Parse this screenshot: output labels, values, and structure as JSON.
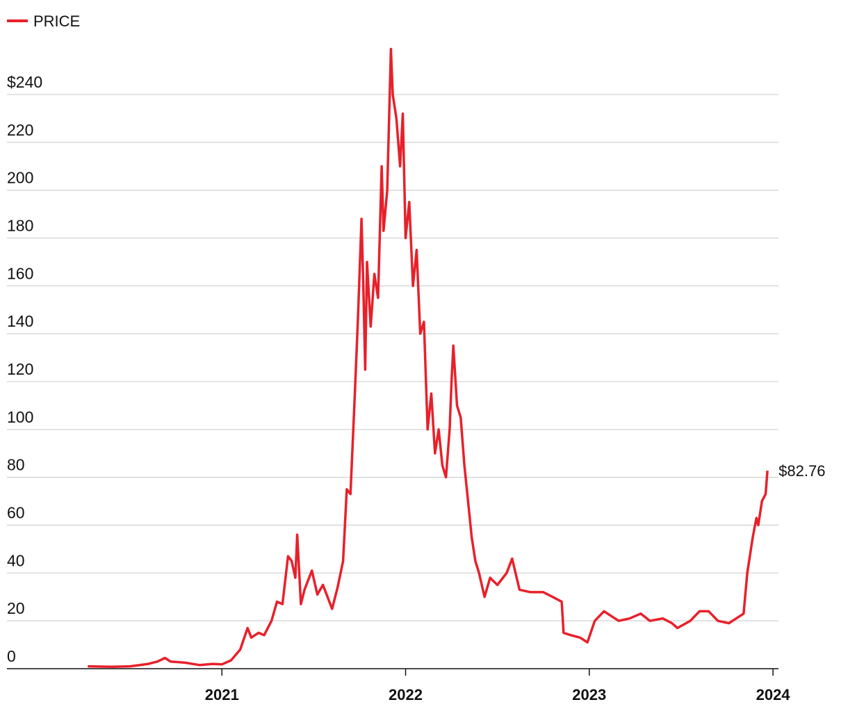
{
  "chart_data": {
    "type": "line",
    "legend": "PRICE",
    "annotation": "$82.76",
    "x": [
      2020.27,
      2020.4,
      2020.5,
      2020.6,
      2020.65,
      2020.69,
      2020.72,
      2020.8,
      2020.88,
      2020.95,
      2021.0,
      2021.05,
      2021.1,
      2021.14,
      2021.16,
      2021.2,
      2021.23,
      2021.27,
      2021.3,
      2021.33,
      2021.36,
      2021.38,
      2021.4,
      2021.41,
      2021.43,
      2021.45,
      2021.49,
      2021.52,
      2021.55,
      2021.6,
      2021.63,
      2021.66,
      2021.68,
      2021.7,
      2021.72,
      2021.74,
      2021.76,
      2021.77,
      2021.78,
      2021.79,
      2021.81,
      2021.83,
      2021.85,
      2021.87,
      2021.88,
      2021.9,
      2021.92,
      2021.93,
      2021.95,
      2021.97,
      2021.985,
      2022.0,
      2022.02,
      2022.04,
      2022.06,
      2022.08,
      2022.1,
      2022.12,
      2022.14,
      2022.16,
      2022.18,
      2022.2,
      2022.22,
      2022.24,
      2022.25,
      2022.26,
      2022.28,
      2022.3,
      2022.32,
      2022.34,
      2022.36,
      2022.38,
      2022.4,
      2022.43,
      2022.46,
      2022.5,
      2022.55,
      2022.58,
      2022.62,
      2022.68,
      2022.75,
      2022.8,
      2022.85,
      2022.86,
      2022.9,
      2022.95,
      2022.99,
      2023.03,
      2023.08,
      2023.12,
      2023.16,
      2023.22,
      2023.28,
      2023.33,
      2023.4,
      2023.45,
      2023.48,
      2023.55,
      2023.6,
      2023.65,
      2023.7,
      2023.76,
      2023.8,
      2023.84,
      2023.86,
      2023.89,
      2023.91,
      2023.92,
      2023.94,
      2023.96,
      2023.97
    ],
    "series": [
      {
        "name": "PRICE",
        "color": "#e8202a",
        "values": [
          1,
          0.8,
          1,
          2,
          3,
          4.5,
          3,
          2.5,
          1.5,
          2,
          1.8,
          3.5,
          8,
          17,
          13,
          15,
          14,
          20,
          28,
          27,
          47,
          45,
          38,
          56,
          27,
          33,
          41,
          31,
          35,
          25,
          34,
          45,
          75,
          73,
          108,
          145,
          188,
          160,
          125,
          170,
          143,
          165,
          155,
          210,
          183,
          200,
          259,
          240,
          230,
          210,
          232,
          180,
          195,
          160,
          175,
          140,
          145,
          100,
          115,
          90,
          100,
          85,
          80,
          100,
          120,
          135,
          110,
          105,
          85,
          70,
          55,
          45,
          40,
          30,
          38,
          35,
          40,
          46,
          33,
          32,
          32,
          30,
          28,
          15,
          14,
          13,
          11,
          20,
          24,
          22,
          20,
          21,
          23,
          20,
          21,
          19,
          17,
          20,
          24,
          24,
          20,
          19,
          21,
          23,
          40,
          55,
          63,
          60,
          70,
          73,
          82.76
        ]
      }
    ],
    "xlim": [
      2019.83,
      2024.03
    ],
    "xticks": [
      2021,
      2022,
      2023,
      2024
    ],
    "ylim": [
      0,
      260
    ],
    "yticks": [
      0,
      20,
      40,
      60,
      80,
      100,
      120,
      140,
      160,
      180,
      200,
      220,
      {
        "value": 240,
        "label": "$240"
      }
    ],
    "grid": true
  }
}
